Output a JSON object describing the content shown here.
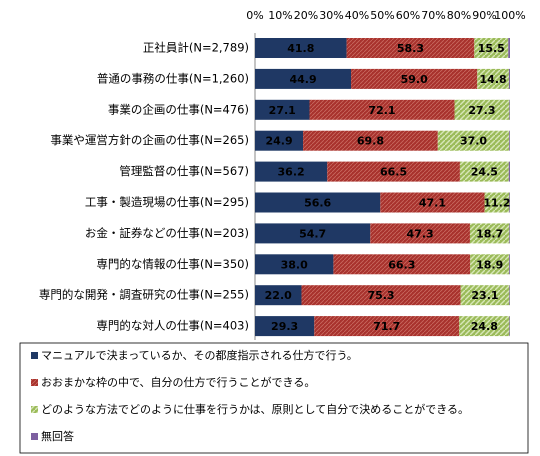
{
  "chart_data": {
    "type": "bar",
    "orientation": "horizontal",
    "stack": "percent",
    "categories": [
      "正社員計(N=2,789)",
      "普通の事務の仕事(N=1,260)",
      "事業の企画の仕事(N=476)",
      "事業や運営方針の企画の仕事(N=265)",
      "管理監督の仕事(N=567)",
      "工事・製造現場の仕事(N=295)",
      "お金・証券などの仕事(N=203)",
      "専門的な情報の仕事(N=350)",
      "専門的な開発・調査研究の仕事(N=255)",
      "専門的な対人の仕事(N=403)"
    ],
    "series": [
      {
        "name": "マニュアルで決まっているか、その都度指示される仕方で行う。",
        "color": "#1f3864",
        "values": [
          41.8,
          44.9,
          27.1,
          24.9,
          36.2,
          56.6,
          54.7,
          38.0,
          22.0,
          29.3
        ],
        "value_labels": [
          "41.8",
          "44.9",
          "27.1",
          "24.9",
          "36.2",
          "56.6",
          "54.7",
          "38.0",
          "22.0",
          "29.3"
        ]
      },
      {
        "name": "おおまかな枠の中で、自分の仕方で行うことができる。",
        "color": "#a8322d",
        "values": [
          58.3,
          59.0,
          72.1,
          69.8,
          66.5,
          47.1,
          47.3,
          66.3,
          75.3,
          71.7
        ],
        "value_labels": [
          "58.3",
          "59.0",
          "72.1",
          "69.8",
          "66.5",
          "47.1",
          "47.3",
          "66.3",
          "75.3",
          "71.7"
        ]
      },
      {
        "name": "どのような方法でどのように仕事を行うかは、原則として自分で決めることができる。",
        "color": "#9bbb59",
        "values": [
          15.5,
          14.8,
          27.3,
          37.0,
          24.5,
          11.2,
          18.7,
          18.9,
          23.1,
          24.8
        ],
        "value_labels": [
          "15.5",
          "14.8",
          "27.3",
          "37.0",
          "24.5",
          "11.2",
          "18.7",
          "18.9",
          "23.1",
          "24.8"
        ]
      },
      {
        "name": "無回答",
        "color": "#7d60a0",
        "values": [
          0.8,
          0.5,
          0.3,
          0.4,
          0.6,
          0.3,
          0.3,
          0.4,
          0.3,
          0.3
        ]
      }
    ],
    "xlim": [
      0,
      100
    ],
    "xticks": [
      {
        "value": 0,
        "label": "0%"
      },
      {
        "value": 10,
        "label": "10%"
      },
      {
        "value": 20,
        "label": "20%"
      },
      {
        "value": 30,
        "label": "30%"
      },
      {
        "value": 40,
        "label": "40%"
      },
      {
        "value": 50,
        "label": "50%"
      },
      {
        "value": 60,
        "label": "60%"
      },
      {
        "value": 70,
        "label": "70%"
      },
      {
        "value": 80,
        "label": "80%"
      },
      {
        "value": 90,
        "label": "90%"
      },
      {
        "value": 100,
        "label": "100%"
      }
    ],
    "legend": "bottom"
  }
}
